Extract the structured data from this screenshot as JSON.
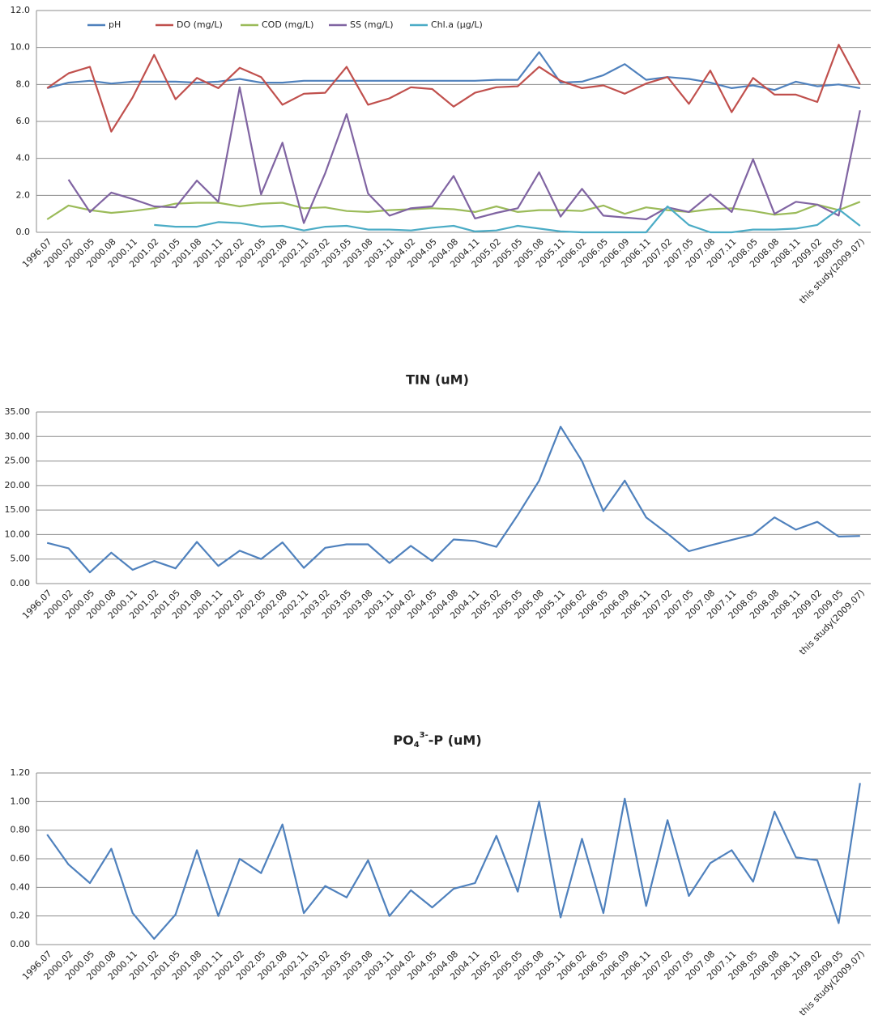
{
  "chart_data": [
    {
      "type": "line",
      "categories": [
        "1996.07",
        "2000.02",
        "2000.05",
        "2000.08",
        "2000.11",
        "2001.02",
        "2001.05",
        "2001.08",
        "2001.11",
        "2002.02",
        "2002.05",
        "2002.08",
        "2002.11",
        "2003.02",
        "2003.05",
        "2003.08",
        "2003.11",
        "2004.02",
        "2004.05",
        "2004.08",
        "2004.11",
        "2005.02",
        "2005.05",
        "2005.08",
        "2005.11",
        "2006.02",
        "2006.05",
        "2006.09",
        "2006.11",
        "2007.02",
        "2007.05",
        "2007.08",
        "2007.11",
        "2008.05",
        "2008.08",
        "2008.11",
        "2009.02",
        "2009.05",
        "this study(2009.07)"
      ],
      "ylim": [
        0,
        12
      ],
      "yticks": [
        {
          "value": 0,
          "label": "0.0"
        },
        {
          "value": 2,
          "label": "2.0"
        },
        {
          "value": 4,
          "label": "4.0"
        },
        {
          "value": 6,
          "label": "6.0"
        },
        {
          "value": 8,
          "label": "8.0"
        },
        {
          "value": 10,
          "label": "10.0"
        },
        {
          "value": 12,
          "label": "12.0"
        }
      ],
      "grid": true,
      "legend": "top",
      "series": [
        {
          "name": "pH",
          "color": "#4f81bd",
          "values": [
            7.8,
            8.1,
            8.2,
            8.05,
            8.15,
            8.15,
            8.15,
            8.1,
            8.15,
            8.3,
            8.1,
            8.1,
            8.2,
            8.2,
            8.2,
            8.2,
            8.2,
            8.2,
            8.2,
            8.2,
            8.2,
            8.25,
            8.25,
            9.75,
            8.1,
            8.15,
            8.5,
            9.1,
            8.25,
            8.4,
            8.3,
            8.1,
            7.8,
            7.95,
            7.7,
            8.15,
            7.9,
            8.0,
            7.8
          ]
        },
        {
          "name": "DO (mg/L)",
          "color": "#c0504d",
          "values": [
            7.8,
            8.6,
            8.95,
            5.45,
            7.3,
            9.6,
            7.2,
            8.35,
            7.8,
            8.9,
            8.4,
            6.9,
            7.5,
            7.55,
            8.95,
            6.9,
            7.25,
            7.85,
            7.75,
            6.8,
            7.55,
            7.85,
            7.9,
            8.95,
            8.2,
            7.8,
            7.95,
            7.5,
            8.05,
            8.4,
            6.95,
            8.75,
            6.5,
            8.35,
            7.45,
            7.45,
            7.05,
            10.15,
            8.0
          ]
        },
        {
          "name": "COD  (mg/L)",
          "color": "#9bbb59",
          "values": [
            0.7,
            1.45,
            1.2,
            1.05,
            1.15,
            1.3,
            1.55,
            1.6,
            1.6,
            1.4,
            1.55,
            1.6,
            1.3,
            1.35,
            1.15,
            1.1,
            1.2,
            1.25,
            1.3,
            1.25,
            1.1,
            1.4,
            1.1,
            1.2,
            1.2,
            1.15,
            1.45,
            1.0,
            1.35,
            1.2,
            1.1,
            1.25,
            1.3,
            1.15,
            0.95,
            1.05,
            1.5,
            1.2,
            1.65
          ]
        },
        {
          "name": "SS (mg/L)",
          "color": "#8064a2",
          "values": [
            null,
            2.85,
            1.1,
            2.15,
            1.8,
            1.4,
            1.35,
            2.8,
            1.65,
            7.85,
            2.05,
            4.85,
            0.5,
            3.2,
            6.4,
            2.1,
            0.9,
            1.3,
            1.4,
            3.05,
            0.75,
            1.05,
            1.3,
            3.25,
            0.85,
            2.35,
            0.9,
            0.8,
            0.7,
            1.35,
            1.1,
            2.05,
            1.1,
            3.95,
            1.0,
            1.65,
            1.5,
            0.9,
            6.6
          ]
        },
        {
          "name": "Chl.a (μg/L)",
          "color": "#4bacc6",
          "values": [
            null,
            null,
            null,
            null,
            null,
            0.4,
            0.3,
            0.3,
            0.55,
            0.5,
            0.3,
            0.35,
            0.1,
            0.3,
            0.35,
            0.15,
            0.15,
            0.1,
            0.25,
            0.35,
            0.05,
            0.1,
            0.35,
            0.2,
            0.05,
            0.0,
            0.0,
            0.0,
            0.0,
            1.4,
            0.4,
            0.0,
            0.0,
            0.15,
            0.15,
            0.2,
            0.4,
            1.25,
            0.35
          ]
        }
      ]
    },
    {
      "type": "line",
      "title": "TIN (uM)",
      "categories": [
        "1996.07",
        "2000.02",
        "2000.05",
        "2000.08",
        "2000.11",
        "2001.02",
        "2001.05",
        "2001.08",
        "2001.11",
        "2002.02",
        "2002.05",
        "2002.08",
        "2002.11",
        "2003.02",
        "2003.05",
        "2003.08",
        "2003.11",
        "2004.02",
        "2004.05",
        "2004.08",
        "2004.11",
        "2005.02",
        "2005.05",
        "2005.08",
        "2005.11",
        "2006.02",
        "2006.05",
        "2006.09",
        "2006.11",
        "2007.02",
        "2007.05",
        "2007.08",
        "2007.11",
        "2008.05",
        "2008.08",
        "2008.11",
        "2009.02",
        "2009.05",
        "this study(2009.07)"
      ],
      "ylim": [
        0,
        35
      ],
      "yticks": [
        {
          "value": 0,
          "label": "0.00"
        },
        {
          "value": 5,
          "label": "5.00"
        },
        {
          "value": 10,
          "label": "10.00"
        },
        {
          "value": 15,
          "label": "15.00"
        },
        {
          "value": 20,
          "label": "20.00"
        },
        {
          "value": 25,
          "label": "25.00"
        },
        {
          "value": 30,
          "label": "30.00"
        },
        {
          "value": 35,
          "label": "35.00"
        }
      ],
      "grid": true,
      "color": "#4f81bd",
      "values": [
        8.3,
        7.2,
        2.3,
        6.3,
        2.8,
        4.6,
        3.1,
        8.5,
        3.6,
        6.7,
        5.0,
        8.4,
        3.2,
        7.3,
        8.0,
        8.0,
        4.2,
        7.7,
        4.6,
        9.0,
        8.7,
        7.5,
        14.0,
        21.0,
        32.0,
        25.0,
        14.8,
        21.0,
        13.5,
        10.2,
        6.6,
        7.8,
        8.9,
        10.0,
        13.5,
        11.0,
        12.6,
        9.6,
        9.7
      ]
    },
    {
      "type": "line",
      "title_parts": [
        "PO",
        "4",
        "3-",
        "-P (uM)"
      ],
      "categories": [
        "1996.07",
        "2000.02",
        "2000.05",
        "2000.08",
        "2000.11",
        "2001.02",
        "2001.05",
        "2001.08",
        "2001.11",
        "2002.02",
        "2002.05",
        "2002.08",
        "2002.11",
        "2003.02",
        "2003.05",
        "2003.08",
        "2003.11",
        "2004.02",
        "2004.05",
        "2004.08",
        "2004.11",
        "2005.02",
        "2005.05",
        "2005.08",
        "2005.11",
        "2006.02",
        "2006.05",
        "2006.09",
        "2006.11",
        "2007.02",
        "2007.05",
        "2007.08",
        "2007.11",
        "2008.05",
        "2008.08",
        "2008.11",
        "2009.02",
        "2009.05",
        "this study(2009.07)"
      ],
      "ylim": [
        0,
        1.2
      ],
      "yticks": [
        {
          "value": 0,
          "label": "0.00"
        },
        {
          "value": 0.2,
          "label": "0.20"
        },
        {
          "value": 0.4,
          "label": "0.40"
        },
        {
          "value": 0.6,
          "label": "0.60"
        },
        {
          "value": 0.8,
          "label": "0.80"
        },
        {
          "value": 1.0,
          "label": "1.00"
        },
        {
          "value": 1.2,
          "label": "1.20"
        }
      ],
      "grid": true,
      "color": "#4f81bd",
      "values": [
        0.77,
        0.56,
        0.43,
        0.67,
        0.22,
        0.04,
        0.21,
        0.66,
        0.2,
        0.6,
        0.5,
        0.84,
        0.22,
        0.41,
        0.33,
        0.59,
        0.2,
        0.38,
        0.26,
        0.39,
        0.43,
        0.76,
        0.37,
        1.0,
        0.19,
        0.74,
        0.22,
        1.02,
        0.27,
        0.87,
        0.34,
        0.57,
        0.66,
        0.44,
        0.93,
        0.61,
        0.59,
        0.15,
        1.13
      ]
    }
  ]
}
